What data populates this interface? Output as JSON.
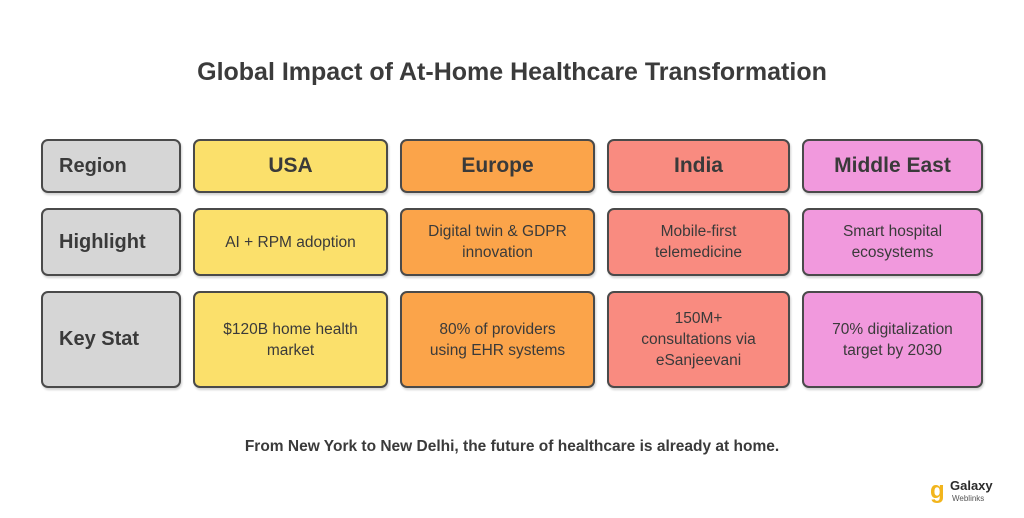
{
  "title": "Global Impact of At-Home Healthcare Transformation",
  "columns": {
    "label": "Region",
    "usa": "USA",
    "europe": "Europe",
    "india": "India",
    "middle_east": "Middle East"
  },
  "highlight": {
    "label": "Highlight",
    "usa": [
      "AI + RPM adoption"
    ],
    "europe": [
      "Digital twin & GDPR",
      "innovation"
    ],
    "india": [
      "Mobile-first",
      "telemedicine"
    ],
    "middle_east": [
      "Smart hospital",
      "ecosystems"
    ]
  },
  "key_stat": {
    "label": "Key Stat",
    "usa": [
      "$120B home health",
      "market"
    ],
    "europe": [
      "80% of providers",
      "using EHR systems"
    ],
    "india": [
      "150M+",
      "consultations via",
      "eSanjeevani"
    ],
    "middle_east": [
      "70% digitalization",
      "target by 2030"
    ]
  },
  "footer": "From New York to New Delhi, the future of healthcare is already at home.",
  "logo": {
    "mark": "g",
    "name": "Galaxy",
    "sub": "Weblinks"
  },
  "colors": {
    "gray": "#d6d6d6",
    "usa": "#fbe06b",
    "europe": "#fba44a",
    "india": "#f98b80",
    "middle_east": "#f199dd"
  }
}
